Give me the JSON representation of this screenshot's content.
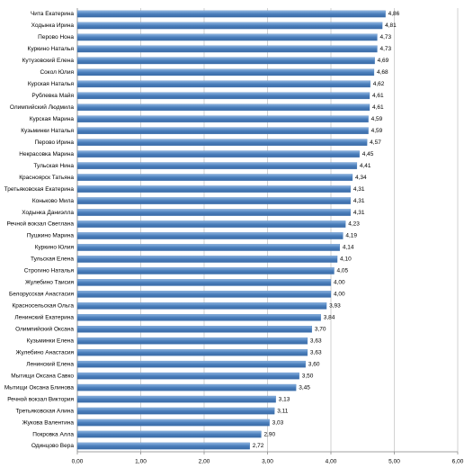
{
  "chart_data": {
    "type": "hbar",
    "categories": [
      "Чита Екатерина",
      "Ходынка Ирина",
      "Перово Нона",
      "Куркино Наталья",
      "Кутузовский Елена",
      "Сокол Юлия",
      "Курская Наталья",
      "Рублевка Майя",
      "Олимпийский Людмила",
      "Курская Марина",
      "Кузьминки Наталья",
      "Перово Ирина",
      "Некрасовка Марина",
      "Тульская Нина",
      "Красноярск Татьяна",
      "Третьяковская Екатерина",
      "Коньково Мила",
      "Ходынка Даниэлла",
      "Речной вокзал Светлана",
      "Пушкино Марина",
      "Куркино Юлия",
      "Тульская Елена",
      "Строгино Наталья",
      "Жулебино Таисия",
      "Белорусская Анастасия",
      "Красносельская Ольга",
      "Ленинский Екатерина",
      "Олимпийский Оксана",
      "Кузьминки Елена",
      "Жулебино Анастасия",
      "Ленинский Елена",
      "Мытищи Оксана Савко",
      "Мытищи Оксана Блинова",
      "Речной вокзал Виктория",
      "Третьяковская Алина",
      "Жукова Валентина",
      "Покровка Алла",
      "Одинцово Вера"
    ],
    "values": [
      4.86,
      4.81,
      4.73,
      4.73,
      4.69,
      4.68,
      4.62,
      4.61,
      4.61,
      4.59,
      4.59,
      4.57,
      4.45,
      4.41,
      4.34,
      4.31,
      4.31,
      4.31,
      4.23,
      4.19,
      4.14,
      4.1,
      4.05,
      4.0,
      4.0,
      3.93,
      3.84,
      3.7,
      3.63,
      3.63,
      3.6,
      3.5,
      3.45,
      3.13,
      3.11,
      3.03,
      2.9,
      2.72
    ],
    "value_labels": [
      "4,86",
      "4,81",
      "4,73",
      "4,73",
      "4,69",
      "4,68",
      "4,62",
      "4,61",
      "4,61",
      "4,59",
      "4,59",
      "4,57",
      "4,45",
      "4,41",
      "4,34",
      "4,31",
      "4,31",
      "4,31",
      "4,23",
      "4,19",
      "4,14",
      "4,10",
      "4,05",
      "4,00",
      "4,00",
      "3,93",
      "3,84",
      "3,70",
      "3,63",
      "3,63",
      "3,60",
      "3,50",
      "3,45",
      "3,13",
      "3,11",
      "3,03",
      "2,90",
      "2,72"
    ],
    "color": "#4a7ebb",
    "xlim": [
      0,
      6
    ],
    "xticks": [
      {
        "value": 0,
        "label": "0,00"
      },
      {
        "value": 1,
        "label": "1,00"
      },
      {
        "value": 2,
        "label": "2,00"
      },
      {
        "value": 3,
        "label": "3,00"
      },
      {
        "value": 4,
        "label": "4,00"
      },
      {
        "value": 5,
        "label": "5,00"
      },
      {
        "value": 6,
        "label": "6,00"
      }
    ],
    "grid": true
  }
}
